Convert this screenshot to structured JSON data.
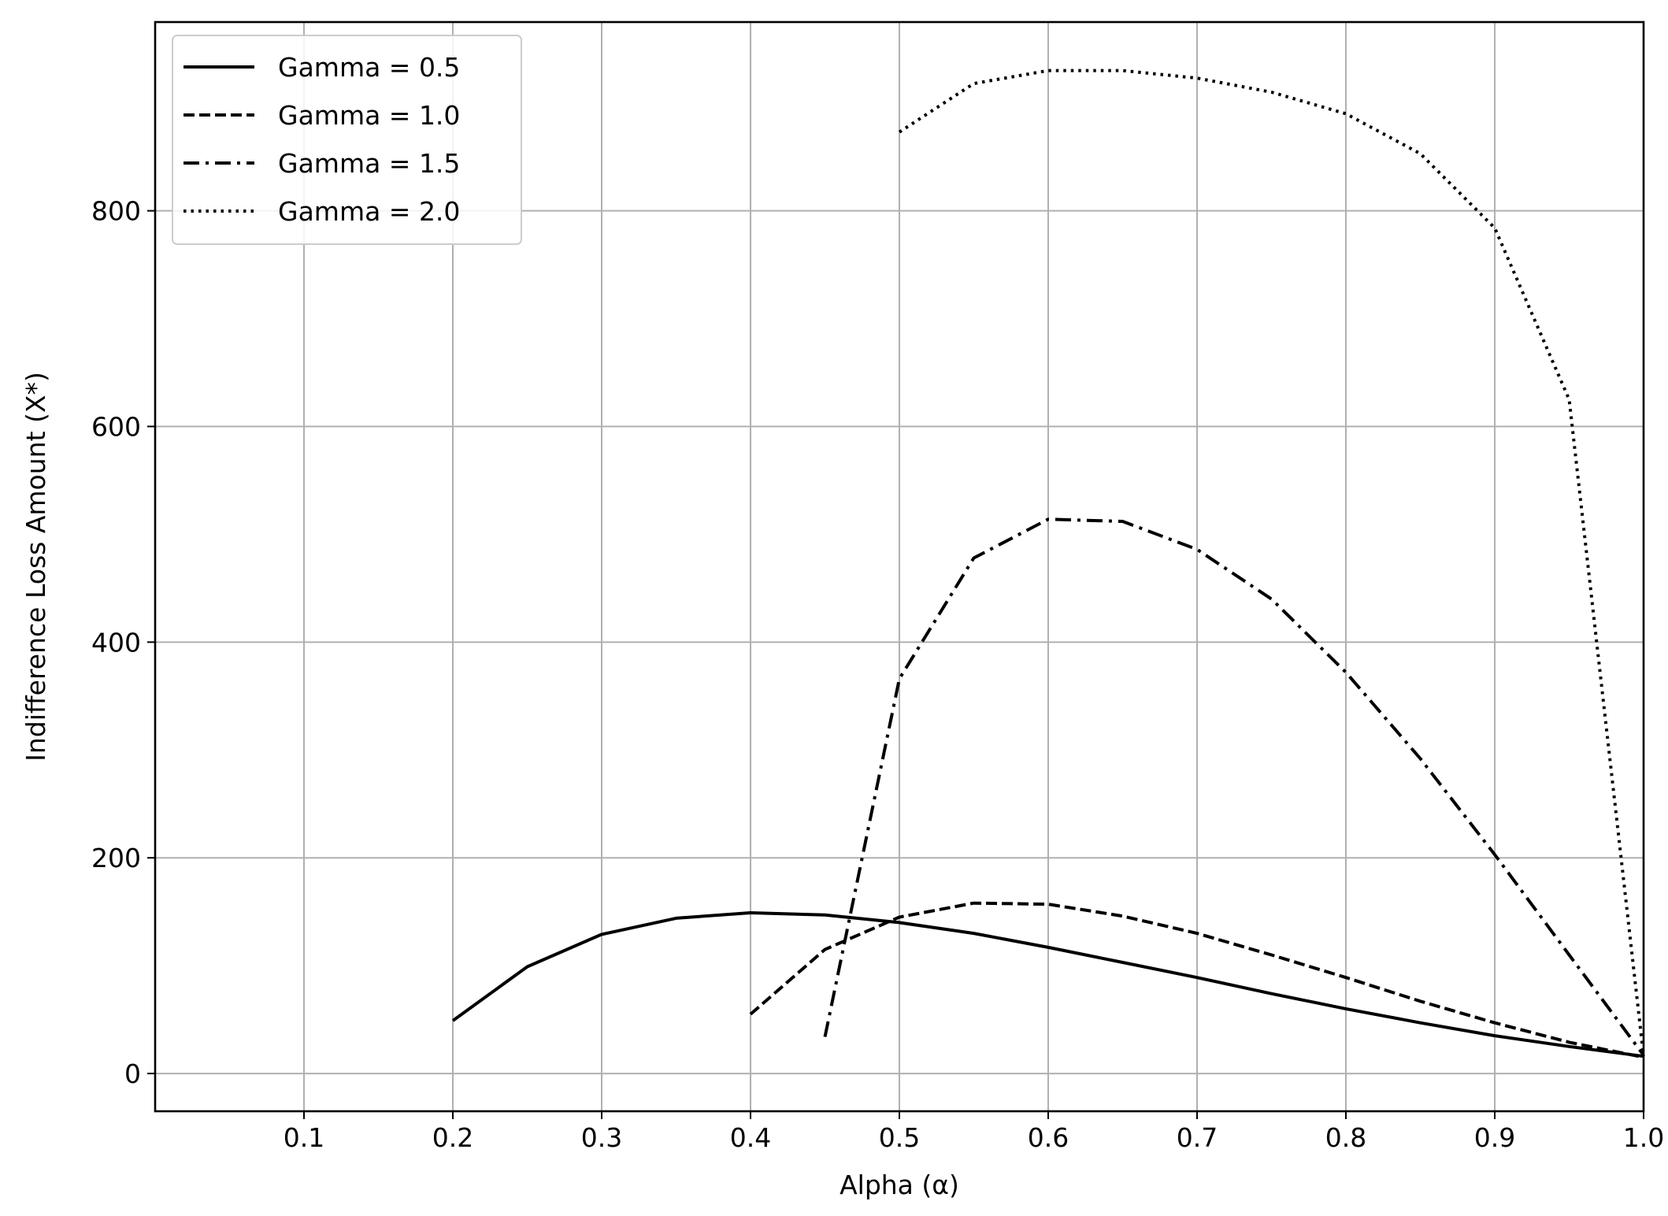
{
  "chart_data": {
    "type": "line",
    "title": "",
    "xlabel": "Alpha (α)",
    "ylabel": "Indifference Loss Amount (X*)",
    "xlim": [
      0.0,
      1.0
    ],
    "ylim": [
      -35,
      975
    ],
    "x_ticks": [
      0.1,
      0.2,
      0.3,
      0.4,
      0.5,
      0.6,
      0.7,
      0.8,
      0.9,
      1.0
    ],
    "x_tick_labels": [
      "0.1",
      "0.2",
      "0.3",
      "0.4",
      "0.5",
      "0.6",
      "0.7",
      "0.8",
      "0.9",
      "1.0"
    ],
    "y_ticks": [
      0,
      200,
      400,
      600,
      800
    ],
    "y_tick_labels": [
      "0",
      "200",
      "400",
      "600",
      "800"
    ],
    "grid": true,
    "legend_position": "top-left",
    "line_color": "#000000",
    "grid_color": "#b0b0b0",
    "series": [
      {
        "name": "Gamma = 0.5",
        "style": "solid",
        "x": [
          0.2,
          0.25,
          0.3,
          0.35,
          0.4,
          0.45,
          0.5,
          0.55,
          0.6,
          0.65,
          0.7,
          0.75,
          0.8,
          0.85,
          0.9,
          0.95,
          1.0
        ],
        "y": [
          49,
          99,
          129,
          144,
          149,
          147,
          140,
          130,
          117,
          103,
          89,
          74,
          60,
          47,
          35,
          25,
          16
        ]
      },
      {
        "name": "Gamma = 1.0",
        "style": "dashed",
        "x": [
          0.4,
          0.45,
          0.5,
          0.55,
          0.6,
          0.65,
          0.7,
          0.75,
          0.8,
          0.85,
          0.9,
          0.95,
          1.0
        ],
        "y": [
          55,
          115,
          145,
          158,
          157,
          146,
          130,
          110,
          89,
          67,
          47,
          29,
          15
        ]
      },
      {
        "name": "Gamma = 1.5",
        "style": "dashdot",
        "x": [
          0.45,
          0.5,
          0.55,
          0.6,
          0.65,
          0.7,
          0.75,
          0.8,
          0.85,
          0.9,
          0.95,
          1.0
        ],
        "y": [
          34,
          366,
          478,
          514,
          512,
          486,
          440,
          372,
          292,
          203,
          110,
          17
        ]
      },
      {
        "name": "Gamma = 2.0",
        "style": "dotted",
        "x": [
          0.5,
          0.55,
          0.6,
          0.65,
          0.7,
          0.75,
          0.8,
          0.85,
          0.9,
          0.95,
          1.0
        ],
        "y": [
          873,
          918,
          930,
          930,
          923,
          910,
          890,
          853,
          784,
          625,
          16
        ]
      }
    ]
  }
}
